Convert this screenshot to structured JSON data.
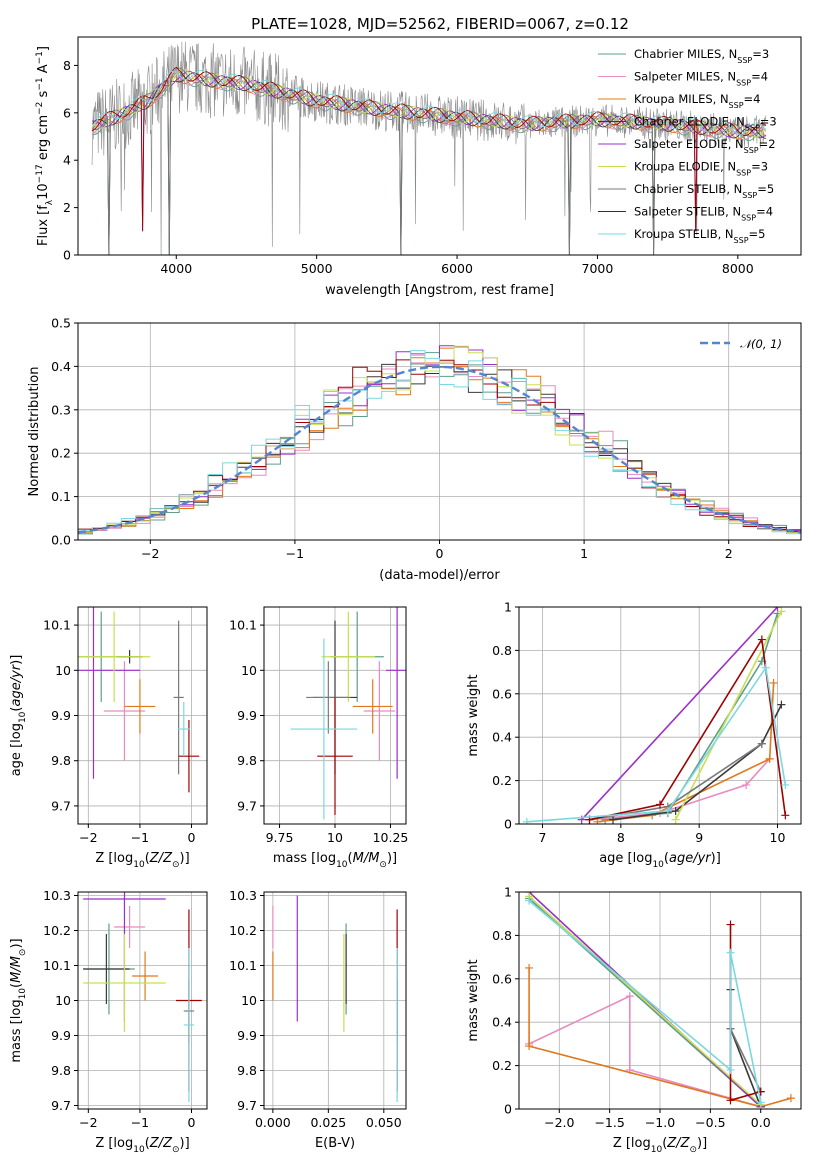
{
  "title": "PLATE=1028, MJD=52562, FIBERID=0067, z=0.12",
  "series_colors": [
    "#5f9e8a",
    "#e98bc1",
    "#e0781e",
    "#3a3a3a",
    "#9b30c8",
    "#c8e050",
    "#7a7a7a",
    "#a00000",
    "#7ad8e0"
  ],
  "chart_data": [
    {
      "id": "spectrum",
      "type": "line",
      "xlabel": "wavelength [Angstrom, rest frame]",
      "ylabel": "Flux [f_λ 10^-17 erg cm^-2 s^-1 A^-1]",
      "xlim": [
        3300,
        8450
      ],
      "ylim": [
        0,
        9.2
      ],
      "xticks": [
        4000,
        5000,
        6000,
        7000,
        8000
      ],
      "yticks": [
        0,
        2,
        4,
        6,
        8
      ],
      "grid": false,
      "legend": "top-right",
      "legend_entries": [
        {
          "label": "Chabrier MILES, N",
          "sub": "SSP",
          "eq": "=3"
        },
        {
          "label": "Salpeter MILES, N",
          "sub": "SSP",
          "eq": "=4"
        },
        {
          "label": "Kroupa MILES, N",
          "sub": "SSP",
          "eq": "=4"
        },
        {
          "label": "Chabrier ELODIE, N",
          "sub": "SSP",
          "eq": "=3"
        },
        {
          "label": "Salpeter ELODIE, N",
          "sub": "SSP",
          "eq": "=2"
        },
        {
          "label": "Kroupa ELODIE, N",
          "sub": "SSP",
          "eq": "=3"
        },
        {
          "label": "Chabrier STELIB, N",
          "sub": "SSP",
          "eq": "=5"
        },
        {
          "label": "Salpeter STELIB, N",
          "sub": "SSP",
          "eq": "=4"
        },
        {
          "label": "Kroupa STELIB, N",
          "sub": "SSP",
          "eq": "=5"
        }
      ],
      "continuum": [
        [
          3400,
          5.4
        ],
        [
          3600,
          5.9
        ],
        [
          3800,
          6.5
        ],
        [
          4000,
          7.6
        ],
        [
          4200,
          7.4
        ],
        [
          4500,
          7.2
        ],
        [
          5000,
          6.5
        ],
        [
          5500,
          6.1
        ],
        [
          6000,
          5.8
        ],
        [
          6500,
          5.5
        ],
        [
          7000,
          5.7
        ],
        [
          7500,
          5.5
        ],
        [
          8000,
          5.2
        ],
        [
          8200,
          5.2
        ]
      ],
      "dips": [
        [
          3520,
          0
        ],
        [
          3950,
          0
        ],
        [
          3760,
          1
        ],
        [
          5600,
          0
        ],
        [
          6800,
          0
        ],
        [
          7400,
          0
        ],
        [
          7700,
          1
        ]
      ]
    },
    {
      "id": "residuals",
      "type": "line",
      "xlabel": "(data-model)/error",
      "ylabel": "Normed distribution",
      "xlim": [
        -2.5,
        2.5
      ],
      "ylim": [
        0,
        0.5
      ],
      "xticks": [
        -2,
        -1,
        0,
        1,
        2
      ],
      "yticks": [
        0.0,
        0.1,
        0.2,
        0.3,
        0.4,
        0.5
      ],
      "grid": true,
      "legend": "top-right",
      "gaussian_label": "𝒩(0, 1)",
      "gaussian_color": "#5585d0",
      "bin_width": 0.1
    },
    {
      "id": "age-vs-Z",
      "type": "scatter",
      "xlabel": "Z [log10(Z/Z⊙)]",
      "ylabel": "age  [log10(age/yr)]",
      "xlim": [
        -2.2,
        0.3
      ],
      "ylim": [
        9.66,
        10.14
      ],
      "xticks": [
        -2,
        -1,
        0
      ],
      "yticks": [
        9.7,
        9.8,
        9.9,
        10.0,
        10.1
      ],
      "grid": true,
      "points": [
        {
          "x": -1.75,
          "y": 10.03,
          "xerr": 0.6,
          "yerr": 0.1,
          "c": 0
        },
        {
          "x": -1.3,
          "y": 9.91,
          "xerr": 0.4,
          "yerr": 0.11,
          "c": 1
        },
        {
          "x": -1.0,
          "y": 9.92,
          "xerr": 0.3,
          "yerr": 0.06,
          "c": 2
        },
        {
          "x": -1.2,
          "y": 10.03,
          "xerr": 0.25,
          "yerr": 0.015,
          "c": 3
        },
        {
          "x": -1.9,
          "y": 10.0,
          "xerr": 0.9,
          "yerr": 0.24,
          "c": 4
        },
        {
          "x": -1.5,
          "y": 10.03,
          "xerr": 0.7,
          "yerr": 0.1,
          "c": 5
        },
        {
          "x": -0.25,
          "y": 9.94,
          "xerr": 0.1,
          "yerr": 0.17,
          "c": 6
        },
        {
          "x": -0.05,
          "y": 9.81,
          "xerr": 0.2,
          "yerr": 0.08,
          "c": 7
        },
        {
          "x": -0.15,
          "y": 9.87,
          "xerr": 0.12,
          "yerr": 0.06,
          "c": 8
        }
      ]
    },
    {
      "id": "age-vs-mass",
      "type": "scatter",
      "xlabel": "mass [log10(M/M⊙)]",
      "ylabel": "",
      "xlim": [
        9.68,
        10.32
      ],
      "ylim": [
        9.66,
        10.14
      ],
      "xticks": [
        9.75,
        10.0,
        10.25
      ],
      "yticks": [
        9.7,
        9.8,
        9.9,
        10.0,
        10.1
      ],
      "grid": true,
      "points": [
        {
          "x": 10.1,
          "y": 10.03,
          "xerr": 0.12,
          "yerr": 0.1,
          "c": 0
        },
        {
          "x": 10.2,
          "y": 9.91,
          "xerr": 0.07,
          "yerr": 0.11,
          "c": 1
        },
        {
          "x": 10.17,
          "y": 9.92,
          "xerr": 0.09,
          "yerr": 0.06,
          "c": 2
        },
        {
          "x": 10.0,
          "y": 9.94,
          "xerr": 0.1,
          "yerr": 0.17,
          "c": 3
        },
        {
          "x": 10.28,
          "y": 10.0,
          "xerr": 0.05,
          "yerr": 0.24,
          "c": 4
        },
        {
          "x": 10.06,
          "y": 10.03,
          "xerr": 0.12,
          "yerr": 0.1,
          "c": 5
        },
        {
          "x": 9.97,
          "y": 9.94,
          "xerr": 0.1,
          "yerr": 0.08,
          "c": 6
        },
        {
          "x": 10.0,
          "y": 9.81,
          "xerr": 0.08,
          "yerr": 0.13,
          "c": 7
        },
        {
          "x": 9.95,
          "y": 9.87,
          "xerr": 0.15,
          "yerr": 0.2,
          "c": 8
        }
      ]
    },
    {
      "id": "weight-vs-age",
      "type": "line",
      "xlabel": "age  [log10(age/yr)]",
      "ylabel": "mass weight",
      "xlim": [
        6.7,
        10.3
      ],
      "ylim": [
        0,
        1.0
      ],
      "xticks": [
        7,
        8,
        9,
        10
      ],
      "yticks": [
        0.0,
        0.2,
        0.4,
        0.6,
        0.8,
        1.0
      ],
      "grid": true,
      "lines": [
        {
          "c": 0,
          "pts": [
            [
              7.8,
              0.02
            ],
            [
              8.6,
              0.05
            ],
            [
              9.8,
              0.75
            ],
            [
              10.0,
              0.97
            ]
          ]
        },
        {
          "c": 1,
          "pts": [
            [
              7.6,
              0.02
            ],
            [
              8.5,
              0.05
            ],
            [
              9.6,
              0.18
            ],
            [
              9.9,
              0.3
            ]
          ]
        },
        {
          "c": 2,
          "pts": [
            [
              7.7,
              0.01
            ],
            [
              8.4,
              0.04
            ],
            [
              9.9,
              0.3
            ],
            [
              9.95,
              0.65
            ]
          ]
        },
        {
          "c": 3,
          "pts": [
            [
              7.9,
              0.02
            ],
            [
              8.7,
              0.06
            ],
            [
              9.8,
              0.37
            ],
            [
              10.05,
              0.55
            ]
          ]
        },
        {
          "c": 4,
          "pts": [
            [
              7.5,
              0.02
            ],
            [
              10.0,
              1.0
            ]
          ]
        },
        {
          "c": 5,
          "pts": [
            [
              8.7,
              0.02
            ],
            [
              10.05,
              0.98
            ]
          ]
        },
        {
          "c": 6,
          "pts": [
            [
              7.6,
              0.02
            ],
            [
              8.6,
              0.08
            ],
            [
              9.8,
              0.37
            ]
          ]
        },
        {
          "c": 7,
          "pts": [
            [
              7.6,
              0.02
            ],
            [
              8.5,
              0.09
            ],
            [
              9.8,
              0.85
            ],
            [
              10.1,
              0.04
            ]
          ]
        },
        {
          "c": 8,
          "pts": [
            [
              6.8,
              0.01
            ],
            [
              8.6,
              0.06
            ],
            [
              9.85,
              0.72
            ],
            [
              10.1,
              0.18
            ]
          ]
        }
      ]
    },
    {
      "id": "mass-vs-Z",
      "type": "scatter",
      "xlabel": "Z [log10(Z/Z⊙)]",
      "ylabel": "mass [log10(M/M⊙)]",
      "xlim": [
        -2.2,
        0.3
      ],
      "ylim": [
        9.69,
        10.31
      ],
      "xticks": [
        -2,
        -1,
        0
      ],
      "yticks": [
        9.7,
        9.8,
        9.9,
        10.0,
        10.1,
        10.2,
        10.3
      ],
      "grid": true,
      "points": [
        {
          "x": -1.6,
          "y": 10.09,
          "xerr": 0.5,
          "yerr": 0.13,
          "c": 0
        },
        {
          "x": -1.2,
          "y": 10.21,
          "xerr": 0.3,
          "yerr": 0.06,
          "c": 1
        },
        {
          "x": -0.9,
          "y": 10.07,
          "xerr": 0.25,
          "yerr": 0.07,
          "c": 2
        },
        {
          "x": -1.65,
          "y": 10.09,
          "xerr": 0.45,
          "yerr": 0.1,
          "c": 3
        },
        {
          "x": -1.3,
          "y": 10.29,
          "xerr": 0.8,
          "yerr": 0.35,
          "c": 4
        },
        {
          "x": -1.3,
          "y": 10.05,
          "xerr": 0.8,
          "yerr": 0.14,
          "c": 5
        },
        {
          "x": -0.05,
          "y": 9.97,
          "xerr": 0.1,
          "yerr": 0.09,
          "c": 6
        },
        {
          "x": -0.05,
          "y": 10.0,
          "xerr": 0.25,
          "yerr": 0.26,
          "c": 7
        },
        {
          "x": -0.05,
          "y": 9.93,
          "xerr": 0.1,
          "yerr": 0.22,
          "c": 8
        }
      ]
    },
    {
      "id": "mass-vs-ebv",
      "type": "scatter",
      "xlabel": "E(B-V)",
      "ylabel": "",
      "xlim": [
        -0.004,
        0.06
      ],
      "ylim": [
        9.69,
        10.31
      ],
      "xticks": [
        0.0,
        0.025,
        0.05
      ],
      "xticklabels": [
        "0.000",
        "0.025",
        "0.050"
      ],
      "yticks": [
        9.7,
        9.8,
        9.9,
        10.0,
        10.1,
        10.2,
        10.3
      ],
      "grid": true,
      "points": [
        {
          "x": 0.033,
          "y": 10.09,
          "yerr": 0.13,
          "c": 0
        },
        {
          "x": 0.0,
          "y": 10.21,
          "yerr": 0.06,
          "c": 1
        },
        {
          "x": 0.0,
          "y": 10.07,
          "yerr": 0.07,
          "c": 2
        },
        {
          "x": 0.033,
          "y": 10.09,
          "yerr": 0.1,
          "c": 3
        },
        {
          "x": 0.011,
          "y": 10.12,
          "yerr": 0.18,
          "c": 4
        },
        {
          "x": 0.032,
          "y": 10.05,
          "yerr": 0.14,
          "c": 5
        },
        {
          "x": 0.056,
          "y": 9.97,
          "yerr": 0.09,
          "c": 6
        },
        {
          "x": 0.056,
          "y": 10.0,
          "yerr": 0.26,
          "c": 7
        },
        {
          "x": 0.056,
          "y": 9.93,
          "yerr": 0.22,
          "c": 8
        }
      ]
    },
    {
      "id": "weight-vs-Z",
      "type": "line",
      "xlabel": "Z [log10(Z/Z⊙)]",
      "ylabel": "mass weight",
      "xlim": [
        -2.4,
        0.4
      ],
      "ylim": [
        0,
        1.0
      ],
      "xticks": [
        -2.0,
        -1.5,
        -1.0,
        -0.5,
        0.0
      ],
      "xticklabels": [
        "−2.0",
        "−1.5",
        "−1.0",
        "−0.5",
        "0.0"
      ],
      "yticks": [
        0.0,
        0.2,
        0.4,
        0.6,
        0.8,
        1.0
      ],
      "grid": true,
      "lines": [
        {
          "c": 0,
          "pts": [
            [
              -2.3,
              0.97
            ],
            [
              0.0,
              0.01
            ]
          ]
        },
        {
          "c": 1,
          "pts": [
            [
              -2.3,
              0.3
            ],
            [
              -1.3,
              0.52
            ],
            [
              -1.3,
              0.18
            ],
            [
              0.0,
              0.01
            ]
          ]
        },
        {
          "c": 2,
          "pts": [
            [
              -2.3,
              0.65
            ],
            [
              -2.3,
              0.29
            ],
            [
              0.0,
              0.01
            ],
            [
              0.3,
              0.05
            ]
          ]
        },
        {
          "c": 3,
          "pts": [
            [
              -0.3,
              0.55
            ],
            [
              -0.3,
              0.37
            ],
            [
              0.0,
              0.01
            ]
          ]
        },
        {
          "c": 4,
          "pts": [
            [
              -2.3,
              1.0
            ],
            [
              0.0,
              0.01
            ]
          ]
        },
        {
          "c": 5,
          "pts": [
            [
              -2.3,
              0.98
            ],
            [
              0.0,
              0.02
            ]
          ]
        },
        {
          "c": 6,
          "pts": [
            [
              -0.3,
              0.37
            ],
            [
              0.0,
              0.08
            ]
          ]
        },
        {
          "c": 7,
          "pts": [
            [
              -0.3,
              0.85
            ],
            [
              -0.3,
              0.04
            ],
            [
              0.0,
              0.08
            ]
          ]
        },
        {
          "c": 8,
          "pts": [
            [
              -2.3,
              0.96
            ],
            [
              -0.3,
              0.18
            ],
            [
              -0.3,
              0.72
            ],
            [
              0.0,
              0.03
            ]
          ]
        }
      ]
    }
  ]
}
